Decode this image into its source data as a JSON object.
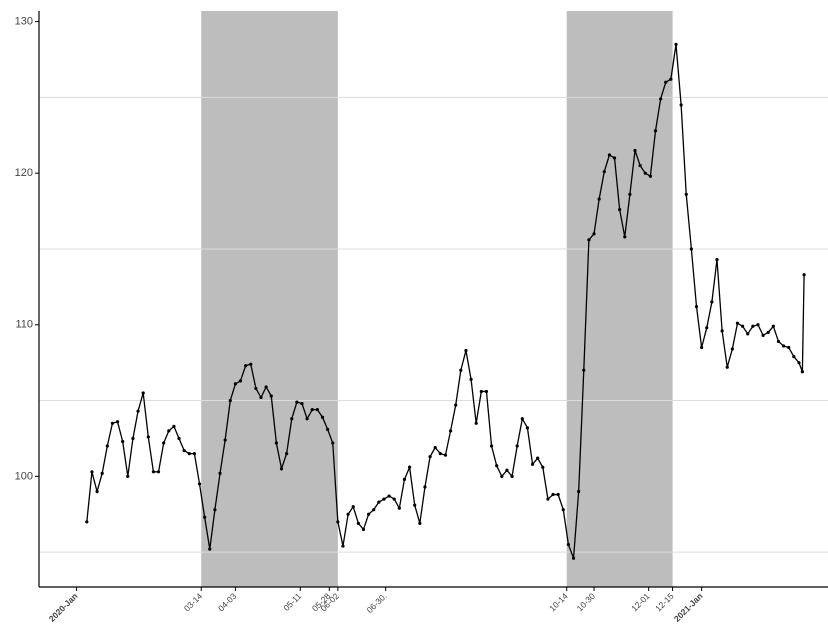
{
  "chart_data": {
    "type": "line",
    "x": [
      "2020-01-07",
      "2020-01-10",
      "2020-01-13",
      "2020-01-16",
      "2020-01-19",
      "2020-01-22",
      "2020-01-25",
      "2020-01-28",
      "2020-01-31",
      "2020-02-03",
      "2020-02-06",
      "2020-02-09",
      "2020-02-12",
      "2020-02-15",
      "2020-02-18",
      "2020-02-21",
      "2020-02-24",
      "2020-02-27",
      "2020-03-01",
      "2020-03-04",
      "2020-03-07",
      "2020-03-10",
      "2020-03-13",
      "2020-03-16",
      "2020-03-19",
      "2020-03-22",
      "2020-03-25",
      "2020-03-28",
      "2020-03-31",
      "2020-04-03",
      "2020-04-06",
      "2020-04-09",
      "2020-04-12",
      "2020-04-15",
      "2020-04-18",
      "2020-04-21",
      "2020-04-24",
      "2020-04-27",
      "2020-04-30",
      "2020-05-03",
      "2020-05-06",
      "2020-05-09",
      "2020-05-12",
      "2020-05-15",
      "2020-05-18",
      "2020-05-21",
      "2020-05-24",
      "2020-05-27",
      "2020-05-30",
      "2020-06-02",
      "2020-06-05",
      "2020-06-08",
      "2020-06-11",
      "2020-06-14",
      "2020-06-17",
      "2020-06-20",
      "2020-06-23",
      "2020-06-26",
      "2020-06-29",
      "2020-07-02",
      "2020-07-05",
      "2020-07-08",
      "2020-07-11",
      "2020-07-14",
      "2020-07-17",
      "2020-07-20",
      "2020-07-23",
      "2020-07-26",
      "2020-07-29",
      "2020-08-01",
      "2020-08-04",
      "2020-08-07",
      "2020-08-10",
      "2020-08-13",
      "2020-08-16",
      "2020-08-19",
      "2020-08-22",
      "2020-08-25",
      "2020-08-28",
      "2020-08-31",
      "2020-09-03",
      "2020-09-06",
      "2020-09-09",
      "2020-09-12",
      "2020-09-15",
      "2020-09-18",
      "2020-09-21",
      "2020-09-24",
      "2020-09-27",
      "2020-09-30",
      "2020-10-03",
      "2020-10-06",
      "2020-10-09",
      "2020-10-12",
      "2020-10-15",
      "2020-10-18",
      "2020-10-21",
      "2020-10-24",
      "2020-10-27",
      "2020-10-30",
      "2020-11-02",
      "2020-11-05",
      "2020-11-08",
      "2020-11-11",
      "2020-11-14",
      "2020-11-17",
      "2020-11-20",
      "2020-11-23",
      "2020-11-26",
      "2020-11-29",
      "2020-12-02",
      "2020-12-05",
      "2020-12-08",
      "2020-12-11",
      "2020-12-14",
      "2020-12-17",
      "2020-12-20",
      "2020-12-23",
      "2020-12-26",
      "2020-12-29",
      "2021-01-01",
      "2021-01-04",
      "2021-01-07",
      "2021-01-10",
      "2021-01-13",
      "2021-01-16",
      "2021-01-19",
      "2021-01-22",
      "2021-01-25",
      "2021-01-28",
      "2021-01-31",
      "2021-02-03",
      "2021-02-06",
      "2021-02-09",
      "2021-02-12",
      "2021-02-15",
      "2021-02-18",
      "2021-02-21",
      "2021-02-24",
      "2021-02-27",
      "2021-03-01",
      "2021-03-02"
    ],
    "values": [
      97.0,
      100.3,
      99.0,
      100.2,
      102.0,
      103.5,
      103.6,
      102.3,
      100.0,
      102.5,
      104.3,
      105.5,
      102.6,
      100.3,
      100.3,
      102.2,
      103.0,
      103.3,
      102.5,
      101.7,
      101.5,
      101.5,
      99.5,
      97.3,
      95.2,
      97.8,
      100.2,
      102.4,
      105.0,
      106.1,
      106.3,
      107.3,
      107.4,
      105.8,
      105.2,
      105.9,
      105.3,
      102.2,
      100.5,
      101.5,
      103.8,
      104.9,
      104.8,
      103.8,
      104.4,
      104.4,
      103.9,
      103.1,
      102.2,
      97.0,
      95.4,
      97.5,
      98.0,
      96.9,
      96.5,
      97.5,
      97.8,
      98.3,
      98.5,
      98.7,
      98.5,
      97.9,
      99.8,
      100.6,
      98.1,
      96.9,
      99.3,
      101.3,
      101.9,
      101.5,
      101.4,
      103.0,
      104.7,
      107.0,
      108.3,
      106.4,
      103.5,
      105.6,
      105.6,
      102.0,
      100.7,
      100.0,
      100.4,
      100.0,
      102.0,
      103.8,
      103.2,
      100.8,
      101.2,
      100.6,
      98.5,
      98.8,
      98.8,
      97.8,
      95.5,
      94.6,
      99.0,
      107.0,
      115.6,
      116.0,
      118.3,
      120.1,
      121.2,
      121.0,
      117.6,
      115.8,
      118.6,
      121.5,
      120.5,
      120.0,
      119.8,
      122.8,
      124.9,
      126.0,
      126.2,
      128.5,
      124.5,
      118.6,
      115.0,
      111.2,
      108.5,
      109.8,
      111.5,
      114.3,
      109.6,
      107.2,
      108.4,
      110.1,
      109.9,
      109.4,
      109.9,
      110.0,
      109.3,
      109.5,
      109.9,
      108.9,
      108.6,
      108.5,
      107.9,
      107.5,
      106.9,
      113.3
    ],
    "color": "#000000",
    "xlim": [
      "2019-12-10",
      "2021-03-16"
    ],
    "xticks": [
      {
        "value": "2020-01-01",
        "label": "2020-Jan",
        "bold": true
      },
      {
        "value": "2020-03-14",
        "label": "03-14"
      },
      {
        "value": "2020-04-03",
        "label": "04-03"
      },
      {
        "value": "2020-05-11",
        "label": "05-11"
      },
      {
        "value": "2020-05-28",
        "label": "05-28"
      },
      {
        "value": "2020-06-02",
        "label": "06-02"
      },
      {
        "value": "2020-06-30",
        "label": "06-30."
      },
      {
        "value": "2020-10-14",
        "label": "10-14"
      },
      {
        "value": "2020-10-30",
        "label": "10-30"
      },
      {
        "value": "2020-12-01",
        "label": "12-01"
      },
      {
        "value": "2020-12-15",
        "label": "12-15"
      },
      {
        "value": "2021-01-01",
        "label": "2021-Jan",
        "bold": true
      }
    ],
    "ylim": [
      92.7,
      130.7
    ],
    "yticks": [
      100,
      110,
      120,
      130
    ],
    "grid_lines": [
      95,
      105,
      115,
      125
    ],
    "shaded": [
      [
        "2020-03-14",
        "2020-06-02"
      ],
      [
        "2020-10-14",
        "2020-12-15"
      ]
    ],
    "shade_color": "#bdbdbd"
  }
}
